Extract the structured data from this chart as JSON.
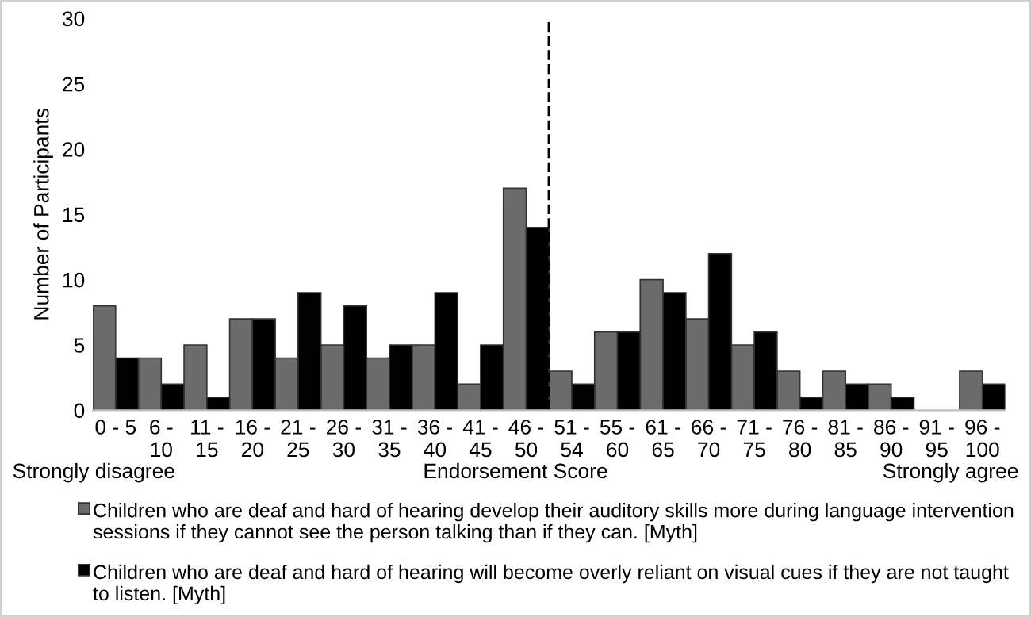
{
  "chart_data": {
    "type": "bar",
    "xlabel": "Endorsement Score",
    "ylabel": "Number of Participants",
    "categories": [
      "0 - 5",
      "6 - 10",
      "11 - 15",
      "16 - 20",
      "21 - 25",
      "26 - 30",
      "31 - 35",
      "36 - 40",
      "41 - 45",
      "46 - 50",
      "51 - 54",
      "55 - 60",
      "61 - 65",
      "66 - 70",
      "71 - 75",
      "76 - 80",
      "81 - 85",
      "86 - 90",
      "91 - 95",
      "96 - 100"
    ],
    "series": [
      {
        "name": "Children who are deaf and hard of hearing develop their auditory skills more during language intervention sessions if they cannot see the person talking than if they can. [Myth]",
        "color": "#6b6b6b",
        "values": [
          8,
          4,
          5,
          7,
          4,
          5,
          4,
          5,
          2,
          17,
          3,
          6,
          10,
          7,
          5,
          3,
          3,
          2,
          0,
          3
        ]
      },
      {
        "name": "Children who are deaf and hard of hearing will become overly reliant on visual cues if they are not taught to listen. [Myth]",
        "color": "#000000",
        "values": [
          4,
          2,
          1,
          7,
          9,
          8,
          5,
          9,
          5,
          14,
          2,
          6,
          9,
          12,
          6,
          1,
          2,
          1,
          0,
          2
        ]
      }
    ],
    "ylim": [
      0,
      30
    ],
    "yticks": [
      0,
      5,
      10,
      15,
      20,
      25,
      30
    ],
    "annotations": [
      "Strongly disagree",
      "Strongly agree"
    ],
    "grid": false,
    "legend": "bottom"
  }
}
